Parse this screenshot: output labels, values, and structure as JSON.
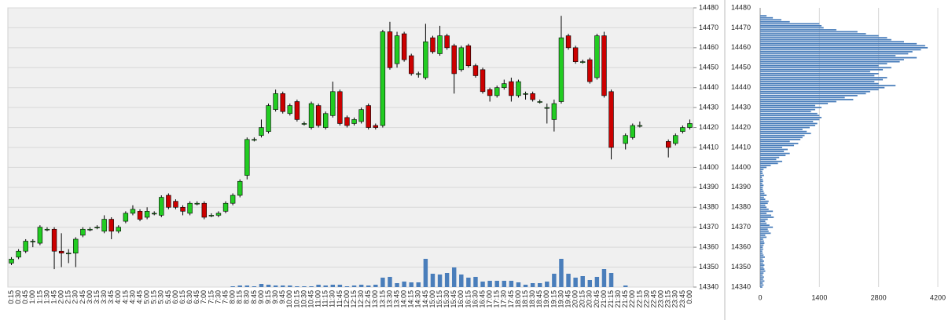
{
  "chart_data": [
    {
      "type": "candlestick",
      "categories": [
        "0:15",
        "0:30",
        "0:45",
        "1:00",
        "1:15",
        "1:30",
        "1:45",
        "2:00",
        "2:15",
        "2:30",
        "2:45",
        "3:00",
        "3:15",
        "3:30",
        "3:45",
        "4:00",
        "4:15",
        "4:30",
        "4:45",
        "5:00",
        "5:15",
        "5:30",
        "5:45",
        "6:00",
        "6:15",
        "6:30",
        "6:45",
        "7:00",
        "7:15",
        "7:30",
        "7:45",
        "8:00",
        "8:15",
        "8:30",
        "8:45",
        "9:00",
        "9:15",
        "9:30",
        "9:45",
        "10:00",
        "10:15",
        "10:30",
        "10:45",
        "11:00",
        "11:15",
        "11:30",
        "11:45",
        "12:00",
        "12:15",
        "12:30",
        "12:45",
        "13:00",
        "13:15",
        "13:30",
        "13:45",
        "14:00",
        "14:15",
        "14:30",
        "14:45",
        "15:00",
        "15:15",
        "15:30",
        "15:45",
        "16:00",
        "16:15",
        "16:30",
        "16:45",
        "17:00",
        "17:15",
        "17:30",
        "17:45",
        "18:00",
        "18:15",
        "18:30",
        "18:45",
        "19:00",
        "19:15",
        "19:30",
        "19:45",
        "20:00",
        "20:15",
        "20:30",
        "20:45",
        "21:00",
        "21:15",
        "21:30",
        "21:45",
        "22:00",
        "22:15",
        "22:30",
        "22:45",
        "23:00",
        "23:15",
        "23:30",
        "23:45",
        "0:00"
      ],
      "open": [
        14352,
        14355,
        14358,
        14363,
        14362,
        14369,
        14369,
        14358,
        14357,
        14357,
        14366,
        14369,
        14370,
        14368,
        14374,
        14368,
        14373,
        14377,
        14378,
        14375,
        14377,
        14376,
        14386,
        14383,
        14380,
        14377,
        14382,
        14382,
        14376,
        14376,
        14378,
        14382,
        14386,
        14396,
        14414,
        14416,
        14418,
        14429,
        14437,
        14427,
        14433,
        14422,
        14420,
        14431,
        14420,
        14426,
        14438,
        14425,
        14422,
        14423,
        14431,
        14421,
        14421,
        14468,
        14452,
        14467,
        14456,
        14447,
        14445,
        14465,
        14457,
        14466,
        14461,
        14449,
        14461,
        14451,
        14449,
        14439,
        14436,
        14440,
        14443,
        14436,
        14437,
        14437,
        14433,
        14430,
        14424,
        14433,
        14466,
        14460,
        14453,
        14454,
        14445,
        14466,
        14438,
        null,
        14412,
        14415,
        14421,
        null,
        null,
        null,
        14413,
        14412,
        14418,
        14420
      ],
      "high": [
        14355,
        14359,
        14364,
        14364,
        14371,
        14370,
        14370,
        14367,
        14359,
        14365,
        14370,
        14370,
        14371,
        14376,
        14375,
        14371,
        14378,
        14381,
        14379,
        14380,
        14378,
        14386,
        14387,
        14384,
        14381,
        14383,
        14383,
        14383,
        14377,
        14378,
        14383,
        14387,
        14394,
        14415,
        14415,
        14424,
        14432,
        14439,
        14438,
        14432,
        14434,
        14423,
        14433,
        14432,
        14428,
        14443,
        14439,
        14426,
        14425,
        14430,
        14432,
        14422,
        14469,
        14473,
        14468,
        14468,
        14457,
        14448,
        14472,
        14466,
        14471,
        14467,
        14462,
        14461,
        14462,
        14452,
        14450,
        14440,
        14441,
        14444,
        14445,
        14444,
        14438,
        14438,
        14434,
        14432,
        14434,
        14476,
        14467,
        14461,
        14454,
        14455,
        14467,
        14468,
        14439,
        null,
        14417,
        14422,
        14423,
        null,
        null,
        null,
        14414,
        14417,
        14421,
        14424
      ],
      "low": [
        14351,
        14354,
        14357,
        14360,
        14361,
        14368,
        14349,
        14350,
        14352,
        14350,
        14365,
        14368,
        14369,
        14367,
        14364,
        14367,
        14372,
        14376,
        14373,
        14374,
        14376,
        14375,
        14379,
        14379,
        14376,
        14376,
        14381,
        14374,
        14375,
        14375,
        14377,
        14381,
        14385,
        14394,
        14413,
        14415,
        14417,
        14428,
        14427,
        14426,
        14423,
        14421,
        14419,
        14420,
        14419,
        14425,
        14421,
        14420,
        14421,
        14422,
        14419,
        14419,
        14420,
        14449,
        14450,
        14453,
        14446,
        14445,
        14444,
        14457,
        14456,
        14459,
        14437,
        14448,
        14450,
        14445,
        14437,
        14433,
        14435,
        14439,
        14433,
        14435,
        14434,
        14433,
        14432,
        14422,
        14418,
        14432,
        14459,
        14452,
        14452,
        14442,
        14444,
        14435,
        14404,
        null,
        14409,
        14414,
        14420,
        null,
        null,
        null,
        14405,
        14411,
        14417,
        14419
      ],
      "close": [
        14354,
        14358,
        14363,
        14363,
        14370,
        14369,
        14358,
        14357,
        14357,
        14364,
        14369,
        14369,
        14370,
        14374,
        14368,
        14370,
        14377,
        14379,
        14374,
        14378,
        14377,
        14385,
        14380,
        14380,
        14378,
        14382,
        14382,
        14375,
        14376,
        14377,
        14382,
        14386,
        14393,
        14414,
        14414,
        14420,
        14431,
        14437,
        14428,
        14431,
        14424,
        14422,
        14432,
        14421,
        14427,
        14438,
        14422,
        14421,
        14424,
        14429,
        14420,
        14420,
        14468,
        14450,
        14466,
        14454,
        14447,
        14447,
        14463,
        14458,
        14466,
        14460,
        14447,
        14460,
        14451,
        14446,
        14438,
        14436,
        14440,
        14442,
        14436,
        14443,
        14437,
        14434,
        14433,
        14430,
        14432,
        14465,
        14460,
        14453,
        14453,
        14443,
        14466,
        14436,
        14410,
        null,
        14416,
        14421,
        14421,
        null,
        null,
        null,
        14410,
        14416,
        14420,
        14422
      ],
      "volume": [
        0,
        0,
        0,
        0,
        0,
        0,
        0,
        0,
        0,
        0,
        0,
        0,
        0,
        0,
        0,
        0,
        0,
        0,
        0,
        0,
        0,
        0,
        0,
        0,
        0,
        0,
        0,
        0,
        0,
        0,
        0,
        1,
        2,
        2,
        1,
        4,
        3,
        2,
        2,
        2,
        1,
        1,
        1,
        3,
        2,
        3,
        3,
        1,
        2,
        3,
        2,
        3,
        12,
        13,
        5,
        7,
        6,
        6,
        36,
        17,
        16,
        18,
        25,
        16,
        12,
        13,
        7,
        8,
        8,
        8,
        8,
        6,
        3,
        5,
        5,
        7,
        17,
        36,
        17,
        12,
        14,
        9,
        13,
        23,
        18,
        0,
        2,
        0,
        0,
        0,
        0,
        0,
        0,
        0,
        0,
        0
      ],
      "up_color": "#22cc22",
      "down_color": "#cc0000",
      "volume_color": "#4a7ebb",
      "ylim": [
        14340,
        14480
      ],
      "yticks": [
        14340,
        14350,
        14360,
        14370,
        14380,
        14390,
        14400,
        14410,
        14420,
        14430,
        14440,
        14450,
        14460,
        14470,
        14480
      ],
      "grid": true
    },
    {
      "type": "bar",
      "orientation": "horizontal",
      "y": [
        14340,
        14341,
        14342,
        14343,
        14344,
        14345,
        14346,
        14347,
        14348,
        14349,
        14350,
        14351,
        14352,
        14353,
        14354,
        14355,
        14356,
        14357,
        14358,
        14359,
        14360,
        14361,
        14362,
        14363,
        14364,
        14365,
        14366,
        14367,
        14368,
        14369,
        14370,
        14371,
        14372,
        14373,
        14374,
        14375,
        14376,
        14377,
        14378,
        14379,
        14380,
        14381,
        14382,
        14383,
        14384,
        14385,
        14386,
        14387,
        14388,
        14389,
        14390,
        14391,
        14392,
        14393,
        14394,
        14395,
        14396,
        14397,
        14398,
        14399,
        14400,
        14401,
        14402,
        14403,
        14404,
        14405,
        14406,
        14407,
        14408,
        14409,
        14410,
        14411,
        14412,
        14413,
        14414,
        14415,
        14416,
        14417,
        14418,
        14419,
        14420,
        14421,
        14422,
        14423,
        14424,
        14425,
        14426,
        14427,
        14428,
        14429,
        14430,
        14431,
        14432,
        14433,
        14434,
        14435,
        14436,
        14437,
        14438,
        14439,
        14440,
        14441,
        14442,
        14443,
        14444,
        14445,
        14446,
        14447,
        14448,
        14449,
        14450,
        14451,
        14452,
        14453,
        14454,
        14455,
        14456,
        14457,
        14458,
        14459,
        14460,
        14461,
        14462,
        14463,
        14464,
        14465,
        14466,
        14467,
        14468,
        14469,
        14470,
        14471,
        14472,
        14473,
        14474,
        14475,
        14476
      ],
      "values": [
        50,
        80,
        60,
        100,
        70,
        90,
        60,
        80,
        120,
        100,
        80,
        100,
        70,
        90,
        60,
        110,
        80,
        60,
        50,
        70,
        60,
        80,
        100,
        90,
        70,
        150,
        120,
        250,
        200,
        180,
        300,
        220,
        150,
        120,
        180,
        320,
        260,
        150,
        300,
        200,
        150,
        120,
        180,
        200,
        120,
        90,
        150,
        100,
        80,
        60,
        60,
        80,
        50,
        70,
        60,
        40,
        90,
        60,
        50,
        80,
        150,
        250,
        420,
        520,
        380,
        450,
        600,
        700,
        560,
        650,
        520,
        800,
        900,
        700,
        950,
        1000,
        1050,
        1200,
        1100,
        1000,
        1170,
        1300,
        1350,
        1250,
        1400,
        1450,
        1400,
        1350,
        1200,
        1300,
        1450,
        1300,
        1600,
        1800,
        2200,
        2000,
        2300,
        2500,
        2600,
        2800,
        2940,
        3200,
        2800,
        2700,
        2900,
        3000,
        2700,
        2800,
        2600,
        2900,
        3100,
        2800,
        3000,
        3300,
        3400,
        3700,
        3200,
        3500,
        3600,
        3800,
        3960,
        3900,
        3700,
        3400,
        3100,
        3000,
        2800,
        2500,
        2300,
        1800,
        1500,
        1450,
        1400,
        700,
        500,
        300,
        150
      ],
      "color": "#4a7ebb",
      "xlim": [
        0,
        4200
      ],
      "xticks": [
        0,
        1400,
        2800,
        4200
      ],
      "ylim": [
        14340,
        14480
      ],
      "yticks": [
        14340,
        14350,
        14360,
        14370,
        14380,
        14390,
        14400,
        14410,
        14420,
        14430,
        14440,
        14450,
        14460,
        14470,
        14480
      ],
      "grid": true
    }
  ]
}
